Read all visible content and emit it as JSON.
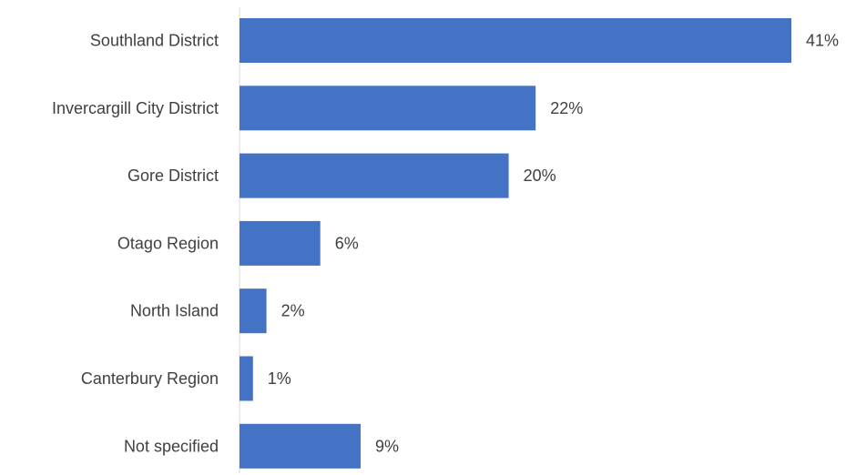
{
  "chart_data": {
    "type": "bar",
    "orientation": "horizontal",
    "categories": [
      "Southland District",
      "Invercargill City District",
      "Gore District",
      "Otago Region",
      "North Island",
      "Canterbury Region",
      "Not specified"
    ],
    "values": [
      41,
      22,
      20,
      6,
      2,
      1,
      9
    ],
    "value_labels": [
      "41%",
      "22%",
      "20%",
      "6%",
      "2%",
      "1%",
      "9%"
    ],
    "unit": "%",
    "xlim": [
      0,
      41
    ],
    "grid": false,
    "legend": "none",
    "bar_color": "#4472C4",
    "axis_color": "#D9D9D9",
    "text_color": "#404040"
  }
}
